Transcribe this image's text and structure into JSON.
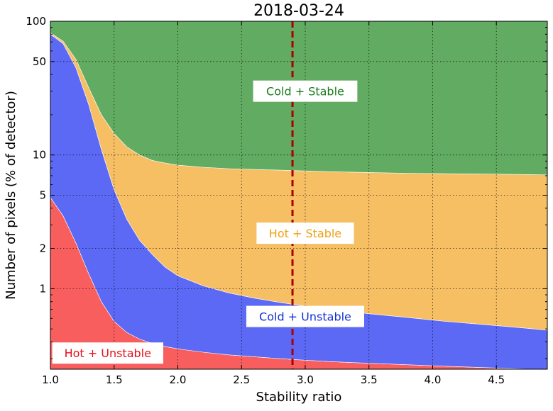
{
  "chart_data": {
    "type": "area",
    "title": "2018-03-24",
    "xlabel": "Stability ratio",
    "ylabel": "Number of pixels (% of detector)",
    "xlim": [
      1.0,
      4.9
    ],
    "ylim": [
      0.25,
      100
    ],
    "yscale": "log",
    "stacked": true,
    "grid": true,
    "x_ticks": [
      1.0,
      1.5,
      2.0,
      2.5,
      3.0,
      3.5,
      4.0,
      4.5
    ],
    "x_tick_labels": [
      "1.0",
      "1.5",
      "2.0",
      "2.5",
      "3.0",
      "3.5",
      "4.0",
      "4.5"
    ],
    "y_ticks": [
      1,
      2,
      5,
      10,
      50,
      100
    ],
    "y_tick_labels": [
      "1",
      "2",
      "5",
      "10",
      "50",
      "100"
    ],
    "x": [
      1.0,
      1.1,
      1.2,
      1.3,
      1.4,
      1.5,
      1.6,
      1.7,
      1.8,
      1.9,
      2.0,
      2.2,
      2.4,
      2.6,
      2.8,
      3.0,
      3.2,
      3.5,
      3.8,
      4.1,
      4.4,
      4.7,
      4.9
    ],
    "series": [
      {
        "name": "Hot + Unstable",
        "color": "#f85e5e",
        "label_color": "#e8101a",
        "cumulative_top": [
          4.8,
          3.5,
          2.2,
          1.3,
          0.8,
          0.57,
          0.47,
          0.42,
          0.39,
          0.37,
          0.355,
          0.335,
          0.32,
          0.31,
          0.3,
          0.292,
          0.285,
          0.277,
          0.27,
          0.263,
          0.257,
          0.251,
          0.248
        ]
      },
      {
        "name": "Cold + Unstable",
        "color": "#5b69f5",
        "label_color": "#1030d8",
        "cumulative_top": [
          80,
          68,
          45,
          24,
          11,
          5.5,
          3.3,
          2.3,
          1.8,
          1.45,
          1.25,
          1.05,
          0.93,
          0.85,
          0.79,
          0.74,
          0.7,
          0.65,
          0.61,
          0.57,
          0.54,
          0.51,
          0.49
        ]
      },
      {
        "name": "Hot + Stable",
        "color": "#f7bf64",
        "label_color": "#f0a010",
        "cumulative_top": [
          82,
          71,
          52,
          32,
          20,
          14.5,
          11.5,
          10,
          9.1,
          8.7,
          8.4,
          8.1,
          7.9,
          7.8,
          7.7,
          7.6,
          7.5,
          7.4,
          7.3,
          7.25,
          7.2,
          7.15,
          7.1
        ]
      },
      {
        "name": "Cold + Stable",
        "color": "#62ab62",
        "label_color": "#1a7a1a",
        "cumulative_top": [
          100,
          100,
          100,
          100,
          100,
          100,
          100,
          100,
          100,
          100,
          100,
          100,
          100,
          100,
          100,
          100,
          100,
          100,
          100,
          100,
          100,
          100,
          100
        ]
      }
    ],
    "annotations": [
      {
        "text": "Cold + Stable",
        "series": 3,
        "x": 3.0,
        "y": 30
      },
      {
        "text": "Hot + Stable",
        "series": 2,
        "x": 3.0,
        "y": 2.6
      },
      {
        "text": "Cold + Unstable",
        "series": 1,
        "x": 3.0,
        "y": 0.62
      },
      {
        "text": "Hot + Unstable",
        "series": 0,
        "x": 1.45,
        "y": 0.33
      }
    ],
    "vline": {
      "x": 2.9,
      "color": "#aa0000",
      "style": "dashed"
    }
  }
}
